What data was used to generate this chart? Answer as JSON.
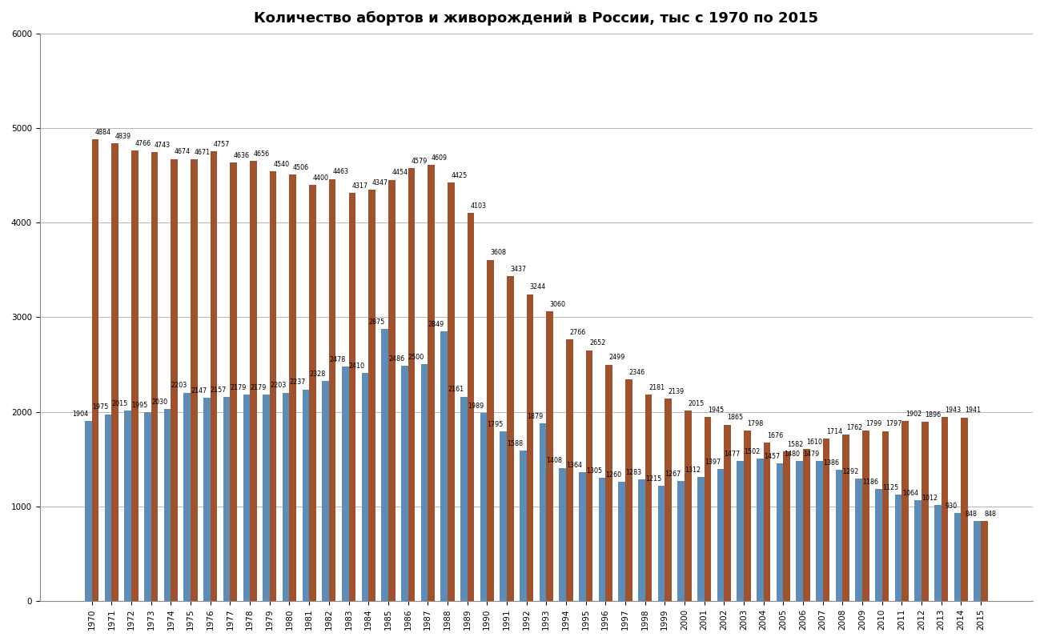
{
  "title": "Количество абортов и живорождений в России, тыс с 1970 по 2015",
  "years": [
    1970,
    1971,
    1972,
    1973,
    1974,
    1975,
    1976,
    1977,
    1978,
    1979,
    1980,
    1981,
    1982,
    1983,
    1984,
    1985,
    1986,
    1987,
    1988,
    1989,
    1990,
    1991,
    1992,
    1993,
    1994,
    1995,
    1996,
    1997,
    1998,
    1999,
    2000,
    2001,
    2002,
    2003,
    2004,
    2005,
    2006,
    2007,
    2008,
    2009,
    2010,
    2011,
    2012,
    2013,
    2014,
    2015
  ],
  "abortions": [
    4884,
    4839,
    4766,
    4743,
    4674,
    4671,
    4757,
    4636,
    4656,
    4540,
    4506,
    4400,
    4463,
    4317,
    4347,
    4454,
    4579,
    4609,
    4425,
    4103,
    3608,
    3437,
    3244,
    3060,
    2766,
    2652,
    2499,
    2346,
    2181,
    2139,
    2015,
    1945,
    1865,
    1798,
    1676,
    1582,
    1610,
    1714,
    1762,
    1799,
    1797,
    1902,
    1896,
    1943,
    1941,
    848
  ],
  "births": [
    1904,
    1975,
    2015,
    1995,
    2030,
    2203,
    2147,
    2157,
    2179,
    2179,
    2203,
    2237,
    2328,
    2478,
    2410,
    2875,
    2486,
    2500,
    2849,
    2161,
    1989,
    1795,
    1588,
    1879,
    1408,
    1364,
    1305,
    1260,
    1283,
    1215,
    1267,
    1312,
    1397,
    1477,
    1502,
    1457,
    1480,
    1479,
    1386,
    1292,
    1186,
    1125,
    1064,
    1012,
    930,
    848
  ],
  "abortion_color": "#A0522D",
  "birth_color": "#5B8DB8",
  "background_color": "#FFFFFF",
  "ylim": [
    0,
    6000
  ],
  "yticks": [
    0,
    1000,
    2000,
    3000,
    4000,
    5000,
    6000
  ],
  "title_fontsize": 13,
  "bar_label_fontsize": 5.8,
  "tick_fontsize": 7.5,
  "grid_color": "#AAAAAA",
  "bar_width": 0.35,
  "bar_gap": 0.0
}
